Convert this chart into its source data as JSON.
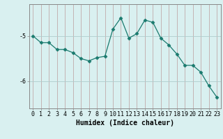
{
  "x": [
    0,
    1,
    2,
    3,
    4,
    5,
    6,
    7,
    8,
    9,
    10,
    11,
    12,
    13,
    14,
    15,
    16,
    17,
    18,
    19,
    20,
    21,
    22,
    23
  ],
  "y": [
    -5.0,
    -5.15,
    -5.15,
    -5.3,
    -5.3,
    -5.37,
    -5.5,
    -5.55,
    -5.48,
    -5.45,
    -4.85,
    -4.6,
    -5.05,
    -4.95,
    -4.65,
    -4.7,
    -5.05,
    -5.2,
    -5.4,
    -5.65,
    -5.65,
    -5.8,
    -6.1,
    -6.35
  ],
  "xlabel": "Humidex (Indice chaleur)",
  "line_color": "#1a7a6e",
  "marker": "D",
  "marker_size": 2.5,
  "bg_color": "#d9f0f0",
  "grid_color": "#aecccc",
  "grid_vcolor": "#c0aaaa",
  "tick_label_fontsize": 6,
  "xlabel_fontsize": 7,
  "ylim": [
    -6.6,
    -4.3
  ],
  "yticks": [
    -6,
    -5
  ],
  "xtick_labels": [
    "0",
    "1",
    "2",
    "3",
    "4",
    "5",
    "6",
    "7",
    "8",
    "9",
    "10",
    "11",
    "12",
    "13",
    "14",
    "15",
    "16",
    "17",
    "18",
    "19",
    "20",
    "21",
    "22",
    "23"
  ]
}
